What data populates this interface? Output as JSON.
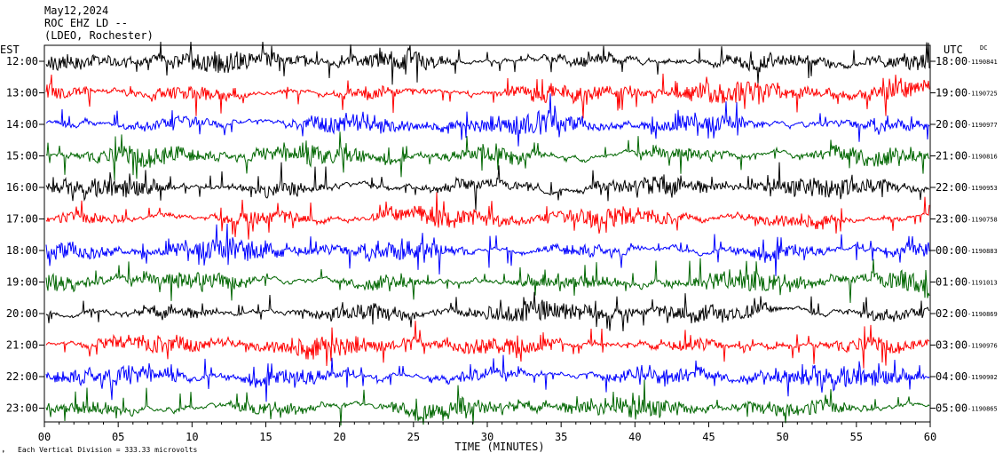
{
  "header": {
    "date": "May12,2024",
    "station": "ROC EHZ LD --",
    "location": "(LDEO, Rochester)"
  },
  "labels": {
    "left_tz": "EST",
    "right_tz": "UTC",
    "dc": "DC",
    "x_title": "TIME (MINUTES)",
    "footnote": "Each Vertical Division =  333.33 microvolts"
  },
  "chart_data": {
    "type": "line",
    "title": "May12,2024",
    "xlabel": "TIME (MINUTES)",
    "xlim": [
      0,
      60
    ],
    "x_ticks": [
      0,
      5,
      10,
      15,
      20,
      25,
      30,
      35,
      40,
      45,
      50,
      55,
      60
    ],
    "x_tick_labels": [
      "00",
      "05",
      "10",
      "15",
      "20",
      "25",
      "30",
      "35",
      "40",
      "45",
      "50",
      "55",
      "60"
    ],
    "trace_colors": [
      "#000000",
      "#ff0000",
      "#0000ff",
      "#006600"
    ],
    "rows": [
      {
        "est": "12:00",
        "utc": "18:00",
        "dc": "-1190841"
      },
      {
        "est": "13:00",
        "utc": "19:00",
        "dc": "-1190725"
      },
      {
        "est": "14:00",
        "utc": "20:00",
        "dc": "-1190977"
      },
      {
        "est": "15:00",
        "utc": "21:00",
        "dc": "-1190816"
      },
      {
        "est": "16:00",
        "utc": "22:00",
        "dc": "-1190953"
      },
      {
        "est": "17:00",
        "utc": "23:00",
        "dc": "-1190758"
      },
      {
        "est": "18:00",
        "utc": "00:00",
        "dc": "-1190883"
      },
      {
        "est": "19:00",
        "utc": "01:00",
        "dc": "-1191013"
      },
      {
        "est": "20:00",
        "utc": "02:00",
        "dc": "-1190869"
      },
      {
        "est": "21:00",
        "utc": "03:00",
        "dc": "-1190976"
      },
      {
        "est": "22:00",
        "utc": "04:00",
        "dc": "-1190902"
      },
      {
        "est": "23:00",
        "utc": "05:00",
        "dc": "-1190865"
      }
    ]
  }
}
